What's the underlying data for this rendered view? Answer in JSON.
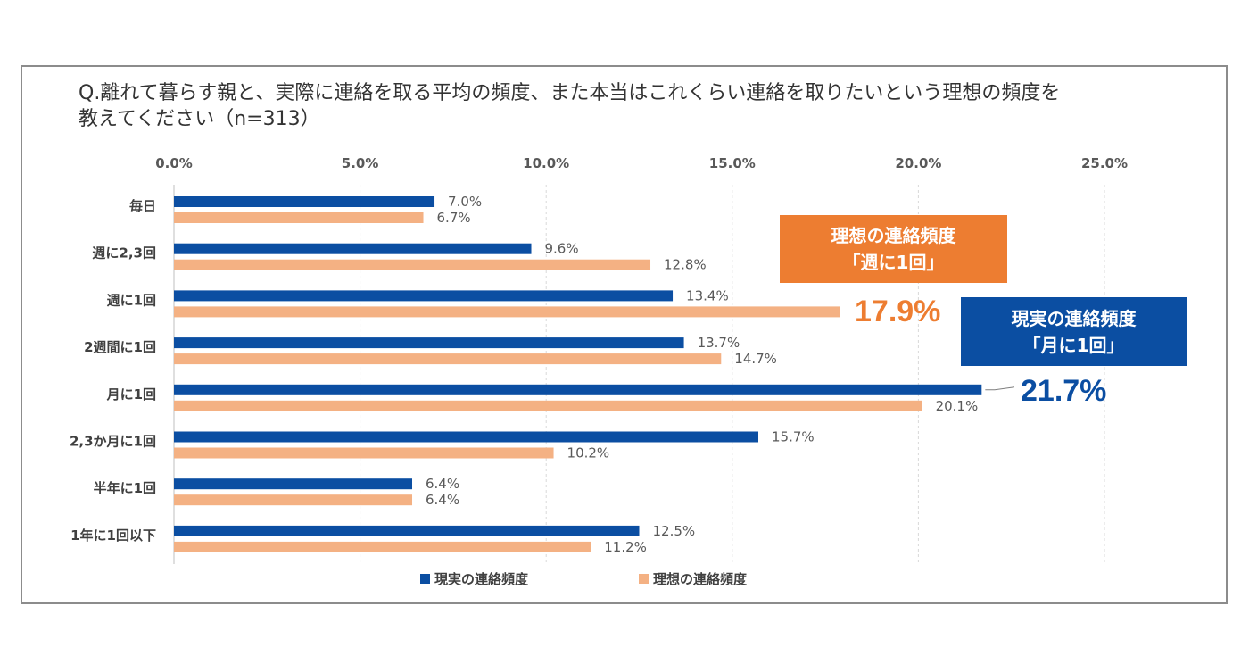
{
  "title_line1": "Q.離れて暮らす親と、実際に連絡を取る平均の頻度、また本当はこれくらい連絡を取りたいという理想の頻度を",
  "title_line2": "教えてください（n=313）",
  "chart_data": {
    "type": "bar",
    "orientation": "horizontal",
    "categories": [
      "毎日",
      "週に2,3回",
      "週に1回",
      "2週間に1回",
      "月に1回",
      "2,3か月に1回",
      "半年に1回",
      "1年に1回以下"
    ],
    "series": [
      {
        "name": "現実の連絡頻度",
        "color": "#0B4EA2",
        "values": [
          7.0,
          9.6,
          13.4,
          13.7,
          21.7,
          15.7,
          6.4,
          12.5
        ],
        "labels": [
          "7.0%",
          "9.6%",
          "13.4%",
          "13.7%",
          "",
          "15.7%",
          "6.4%",
          "12.5%"
        ]
      },
      {
        "name": "理想の連絡頻度",
        "color": "#F4B183",
        "values": [
          6.7,
          12.8,
          17.9,
          14.7,
          20.1,
          10.2,
          6.4,
          11.2
        ],
        "labels": [
          "6.7%",
          "12.8%",
          "",
          "14.7%",
          "20.1%",
          "10.2%",
          "6.4%",
          "11.2%"
        ]
      }
    ],
    "xlim": [
      0,
      25
    ],
    "ticks": [
      "0.0%",
      "5.0%",
      "10.0%",
      "15.0%",
      "20.0%",
      "25.0%"
    ],
    "tick_values": [
      0,
      5,
      10,
      15,
      20,
      25
    ],
    "legend_position": "bottom",
    "grid": true
  },
  "callouts": {
    "ideal": {
      "line1": "理想の連絡頻度",
      "line2": "「週に1回」",
      "value": "17.9%",
      "color": "#ED7D31"
    },
    "actual": {
      "line1": "現実の連絡頻度",
      "line2": "「月に1回」",
      "value": "21.7%",
      "color": "#0B4EA2"
    }
  },
  "legend": {
    "actual": "現実の連絡頻度",
    "ideal": "理想の連絡頻度"
  }
}
